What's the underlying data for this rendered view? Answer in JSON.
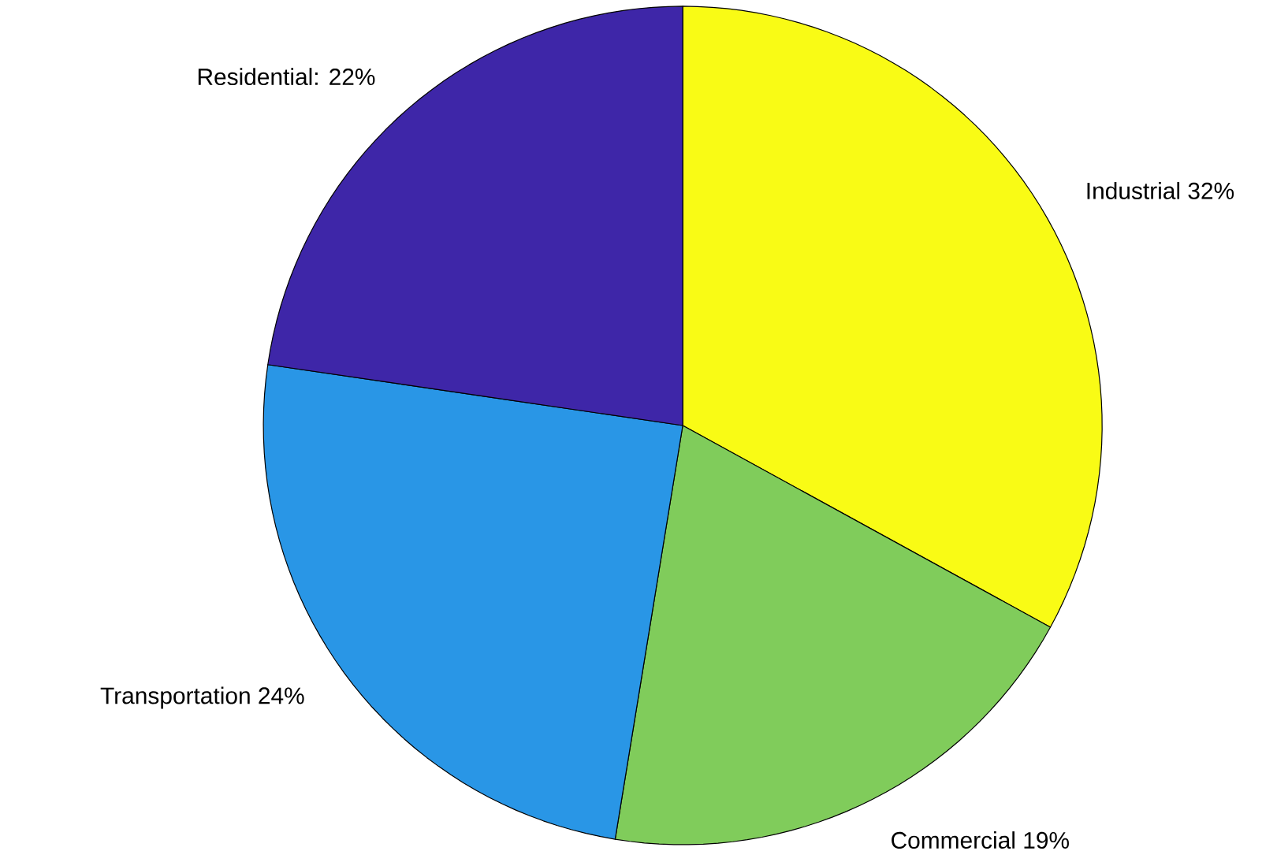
{
  "chart_data": {
    "type": "pie",
    "categories": [
      "Industrial 32%",
      "Commercial 19%",
      "Transportation 24%",
      "Residential: 22%"
    ],
    "values": [
      32,
      19,
      24,
      22
    ],
    "colors": [
      "#f9fb15",
      "#80cc5b",
      "#2996e6",
      "#3e26a8"
    ]
  }
}
